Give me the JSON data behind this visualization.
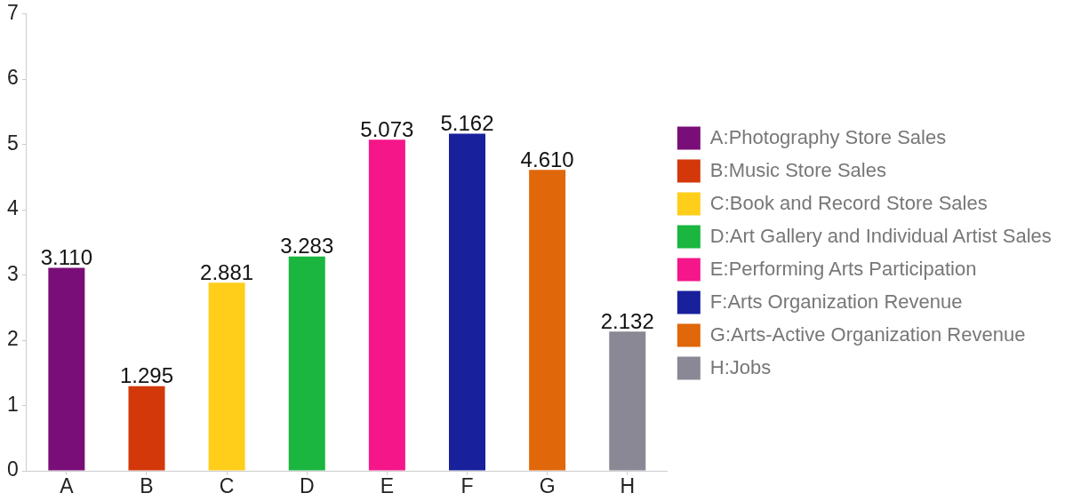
{
  "chart_data": {
    "type": "bar",
    "categories": [
      "A",
      "B",
      "C",
      "D",
      "E",
      "F",
      "G",
      "H"
    ],
    "series": [
      {
        "name": "A:Photography Store Sales",
        "color": "#7a0e78",
        "values": [
          3.11,
          null,
          null,
          null,
          null,
          null,
          null,
          null
        ],
        "value_labels": [
          "3.110",
          null,
          null,
          null,
          null,
          null,
          null,
          null
        ]
      },
      {
        "name": "B:Music Store Sales",
        "color": "#d3380a",
        "values": [
          null,
          1.295,
          null,
          null,
          null,
          null,
          null,
          null
        ],
        "value_labels": [
          null,
          "1.295",
          null,
          null,
          null,
          null,
          null,
          null
        ]
      },
      {
        "name": "C:Book and Record Store Sales",
        "color": "#ffce1a",
        "values": [
          null,
          null,
          2.881,
          null,
          null,
          null,
          null,
          null
        ],
        "value_labels": [
          null,
          null,
          "2.881",
          null,
          null,
          null,
          null,
          null
        ]
      },
      {
        "name": "D:Art Gallery and Individual Artist Sales",
        "color": "#1ab63f",
        "values": [
          null,
          null,
          null,
          3.283,
          null,
          null,
          null,
          null
        ],
        "value_labels": [
          null,
          null,
          null,
          "3.283",
          null,
          null,
          null,
          null
        ]
      },
      {
        "name": "E:Performing Arts Participation",
        "color": "#f5168a",
        "values": [
          null,
          null,
          null,
          null,
          5.073,
          null,
          null,
          null
        ],
        "value_labels": [
          null,
          null,
          null,
          null,
          "5.073",
          null,
          null,
          null
        ]
      },
      {
        "name": "F:Arts Organization Revenue",
        "color": "#18209c",
        "values": [
          null,
          null,
          null,
          null,
          null,
          5.162,
          null,
          null
        ],
        "value_labels": [
          null,
          null,
          null,
          null,
          null,
          "5.162",
          null,
          null
        ]
      },
      {
        "name": "G:Arts-Active Organization Revenue",
        "color": "#e0670a",
        "values": [
          null,
          null,
          null,
          null,
          null,
          null,
          4.61,
          null
        ],
        "value_labels": [
          null,
          null,
          null,
          null,
          null,
          null,
          "4.610",
          null
        ]
      },
      {
        "name": "H:Jobs",
        "color": "#898894",
        "values": [
          null,
          null,
          null,
          null,
          null,
          null,
          null,
          2.132
        ],
        "value_labels": [
          null,
          null,
          null,
          null,
          null,
          null,
          null,
          "2.132"
        ]
      }
    ],
    "ylim": [
      0,
      7
    ],
    "yticks": [
      0,
      1,
      2,
      3,
      4,
      5,
      6,
      7
    ],
    "grid": false,
    "legend": "right"
  }
}
